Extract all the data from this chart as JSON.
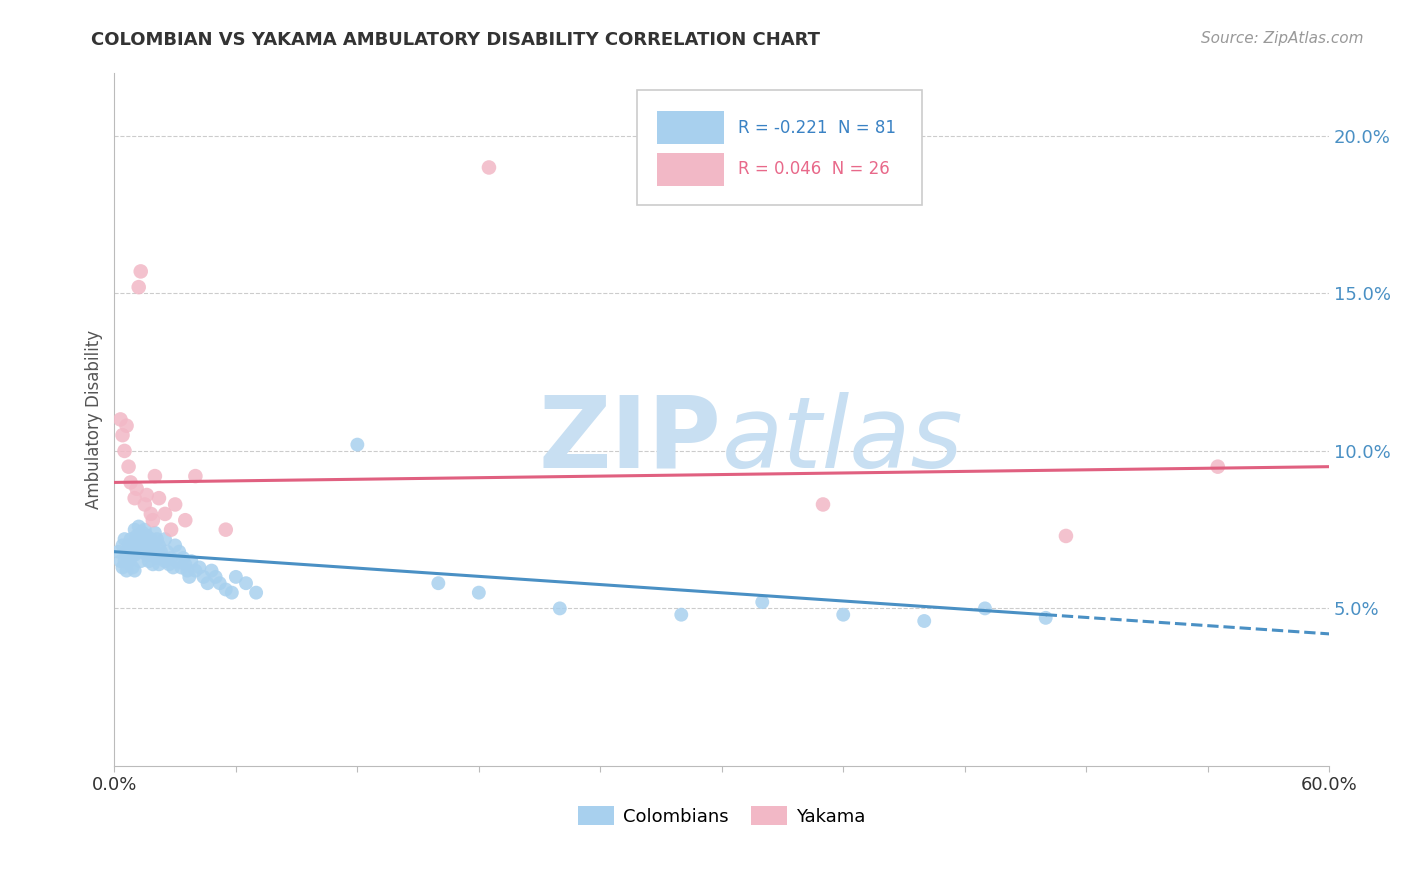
{
  "title": "COLOMBIAN VS YAKAMA AMBULATORY DISABILITY CORRELATION CHART",
  "source": "Source: ZipAtlas.com",
  "ylabel": "Ambulatory Disability",
  "xlim": [
    0.0,
    0.6
  ],
  "ylim": [
    0.0,
    0.22
  ],
  "colombian_R": -0.221,
  "colombian_N": 81,
  "yakama_R": 0.046,
  "yakama_N": 26,
  "colombian_color": "#A8D0EE",
  "yakama_color": "#F2B8C6",
  "colombian_line_color": "#4A90C4",
  "yakama_line_color": "#E06080",
  "background_color": "#FFFFFF",
  "grid_color": "#CCCCCC",
  "watermark_color": "#C8DFF2",
  "colombian_points_x": [
    0.002,
    0.003,
    0.004,
    0.004,
    0.005,
    0.005,
    0.006,
    0.006,
    0.007,
    0.007,
    0.008,
    0.008,
    0.009,
    0.009,
    0.01,
    0.01,
    0.01,
    0.01,
    0.011,
    0.011,
    0.012,
    0.012,
    0.013,
    0.013,
    0.014,
    0.014,
    0.015,
    0.015,
    0.016,
    0.016,
    0.017,
    0.017,
    0.018,
    0.018,
    0.019,
    0.019,
    0.02,
    0.02,
    0.021,
    0.021,
    0.022,
    0.022,
    0.023,
    0.024,
    0.025,
    0.025,
    0.026,
    0.027,
    0.028,
    0.029,
    0.03,
    0.031,
    0.032,
    0.033,
    0.034,
    0.035,
    0.036,
    0.037,
    0.038,
    0.04,
    0.042,
    0.044,
    0.046,
    0.048,
    0.05,
    0.052,
    0.055,
    0.058,
    0.06,
    0.065,
    0.07,
    0.12,
    0.16,
    0.18,
    0.22,
    0.28,
    0.32,
    0.36,
    0.4,
    0.43,
    0.46
  ],
  "colombian_points_y": [
    0.068,
    0.065,
    0.07,
    0.063,
    0.072,
    0.065,
    0.068,
    0.062,
    0.07,
    0.065,
    0.072,
    0.066,
    0.068,
    0.063,
    0.075,
    0.071,
    0.067,
    0.062,
    0.073,
    0.068,
    0.076,
    0.07,
    0.072,
    0.065,
    0.074,
    0.068,
    0.075,
    0.069,
    0.073,
    0.067,
    0.071,
    0.065,
    0.072,
    0.067,
    0.07,
    0.064,
    0.074,
    0.068,
    0.072,
    0.066,
    0.07,
    0.064,
    0.068,
    0.066,
    0.072,
    0.065,
    0.068,
    0.064,
    0.066,
    0.063,
    0.07,
    0.065,
    0.068,
    0.063,
    0.066,
    0.064,
    0.062,
    0.06,
    0.065,
    0.062,
    0.063,
    0.06,
    0.058,
    0.062,
    0.06,
    0.058,
    0.056,
    0.055,
    0.06,
    0.058,
    0.055,
    0.102,
    0.058,
    0.055,
    0.05,
    0.048,
    0.052,
    0.048,
    0.046,
    0.05,
    0.047
  ],
  "yakama_points_x": [
    0.003,
    0.004,
    0.005,
    0.006,
    0.007,
    0.008,
    0.01,
    0.011,
    0.012,
    0.013,
    0.015,
    0.016,
    0.018,
    0.019,
    0.02,
    0.022,
    0.025,
    0.028,
    0.03,
    0.035,
    0.04,
    0.055,
    0.185,
    0.35,
    0.47,
    0.545
  ],
  "yakama_points_y": [
    0.11,
    0.105,
    0.1,
    0.108,
    0.095,
    0.09,
    0.085,
    0.088,
    0.152,
    0.157,
    0.083,
    0.086,
    0.08,
    0.078,
    0.092,
    0.085,
    0.08,
    0.075,
    0.083,
    0.078,
    0.092,
    0.075,
    0.19,
    0.083,
    0.073,
    0.095
  ]
}
